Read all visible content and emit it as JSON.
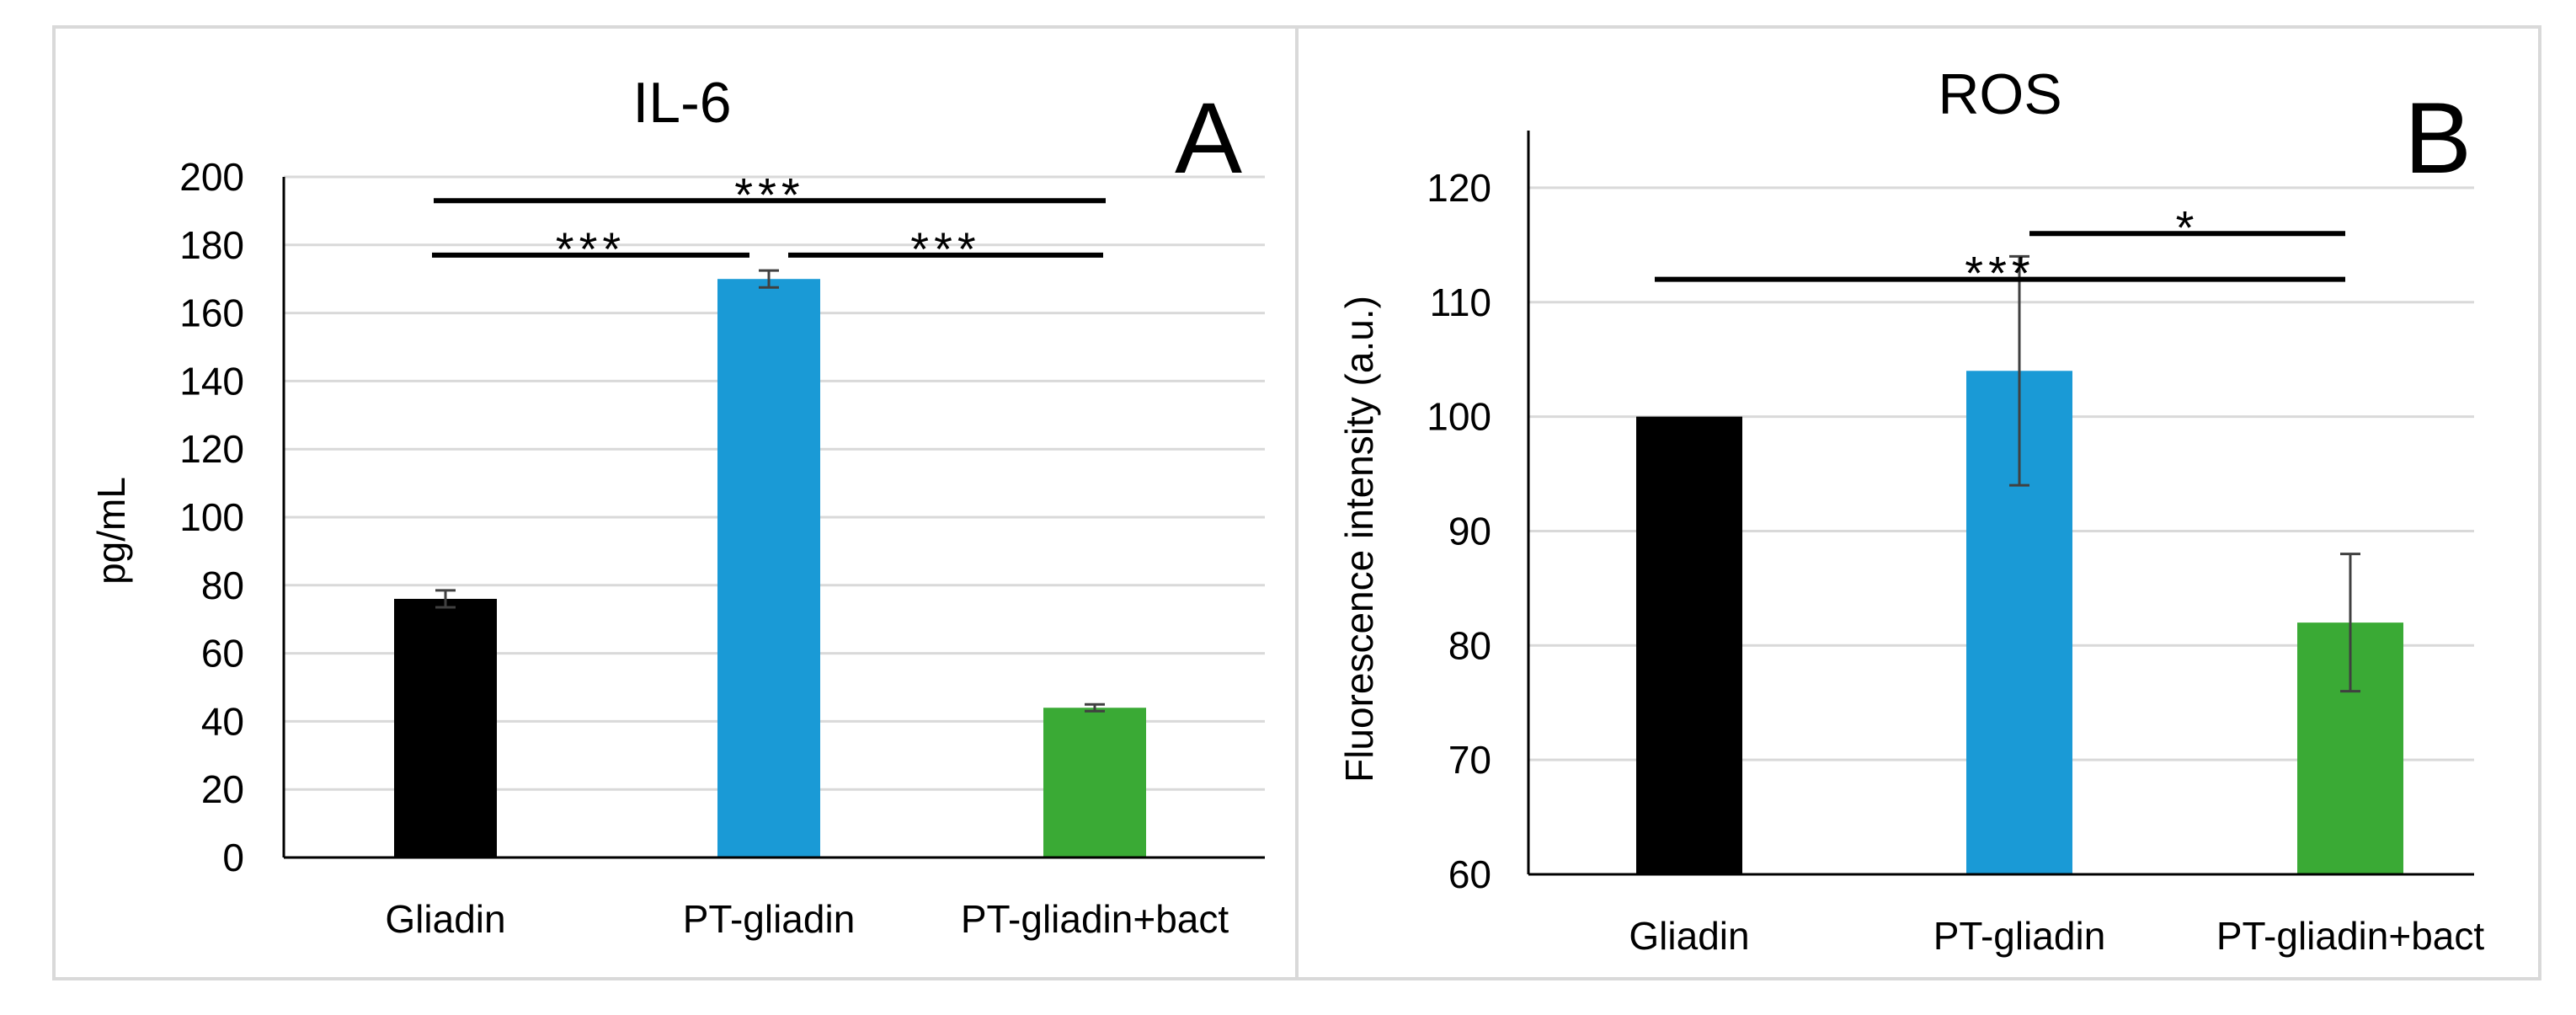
{
  "figure": {
    "colors": {
      "frame": "#d9d9d9",
      "grid": "#d9d9d9",
      "axis": "#000000",
      "errorbar": "#404040",
      "bracket": "#000000"
    }
  },
  "chart_data": [
    {
      "panel": "A",
      "type": "bar",
      "title": "IL-6",
      "xlabel": "",
      "ylabel": "pg/mL",
      "ylim": [
        0,
        200
      ],
      "ytick_step": 20,
      "grid": true,
      "yticks": [
        "0",
        "20",
        "40",
        "60",
        "80",
        "100",
        "120",
        "140",
        "160",
        "180",
        "200"
      ],
      "categories": [
        "Gliadin",
        "PT-gliadin",
        "PT-gliadin+bact"
      ],
      "values": [
        76,
        170,
        44
      ],
      "errors": [
        2.5,
        2.5,
        1
      ],
      "colors": [
        "#000000",
        "#1a9ad6",
        "#3aaa35"
      ],
      "significance": [
        {
          "from": 0,
          "to": 1,
          "label": "***",
          "y": 177
        },
        {
          "from": 1,
          "to": 2,
          "label": "***",
          "y": 177
        },
        {
          "from": 0,
          "to": 2,
          "label": "***",
          "y": 193
        }
      ]
    },
    {
      "panel": "B",
      "type": "bar",
      "title": "ROS",
      "xlabel": "",
      "ylabel": "Fluorescence intensity (a.u.)",
      "ylim": [
        60,
        125
      ],
      "ytick_step": 10,
      "grid": true,
      "yticks": [
        "60",
        "70",
        "80",
        "90",
        "100",
        "110",
        "120"
      ],
      "categories": [
        "Gliadin",
        "PT-gliadin",
        "PT-gliadin+bact"
      ],
      "values": [
        100,
        104,
        82
      ],
      "errors": [
        0,
        10,
        6
      ],
      "colors": [
        "#000000",
        "#1a9ad6",
        "#3aaa35"
      ],
      "significance": [
        {
          "from": 1,
          "to": 2,
          "label": "*",
          "y": 116
        },
        {
          "from": 0,
          "to": 2,
          "label": "***",
          "y": 112
        }
      ]
    }
  ]
}
